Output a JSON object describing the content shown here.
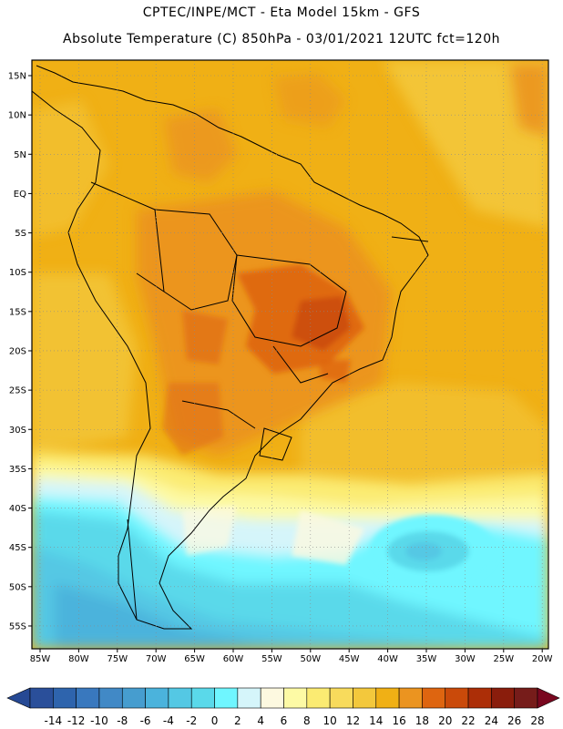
{
  "header": {
    "line1": "CPTEC/INPE/MCT -  Eta Model 15km - GFS",
    "line2": "Absolute Temperature (C) 850hPa - 03/01/2021 12UTC fct=120h"
  },
  "map": {
    "lat_labels": [
      "15N",
      "10N",
      "5N",
      "EQ",
      "5S",
      "10S",
      "15S",
      "20S",
      "25S",
      "30S",
      "35S",
      "40S",
      "45S",
      "50S",
      "55S"
    ],
    "lon_labels": [
      "85W",
      "80W",
      "75W",
      "70W",
      "65W",
      "60W",
      "55W",
      "50W",
      "45W",
      "40W",
      "35W",
      "30W",
      "25W",
      "20W"
    ],
    "background_color": "#f0b015",
    "land_outline_color": "#000000"
  },
  "colorbar": {
    "labels": [
      "-14",
      "-12",
      "-10",
      "-8",
      "-6",
      "-4",
      "-2",
      "0",
      "2",
      "4",
      "6",
      "8",
      "10",
      "12",
      "14",
      "16",
      "18",
      "20",
      "22",
      "24",
      "26",
      "28"
    ],
    "colors": [
      "#2a4f9a",
      "#2e64ad",
      "#3978be",
      "#4189c6",
      "#469dcf",
      "#4bb3dc",
      "#54c8e4",
      "#5ad9ea",
      "#6ff6ff",
      "#d5f5fa",
      "#fdf9e0",
      "#fdfaa5",
      "#fbeb72",
      "#f8db5c",
      "#f3c83c",
      "#f0b015",
      "#eb9420",
      "#de6510",
      "#ca4a0a",
      "#ac2e07",
      "#8a1d0c",
      "#761c1a"
    ],
    "low_end_color": "#264994",
    "high_end_color": "#79071f"
  }
}
